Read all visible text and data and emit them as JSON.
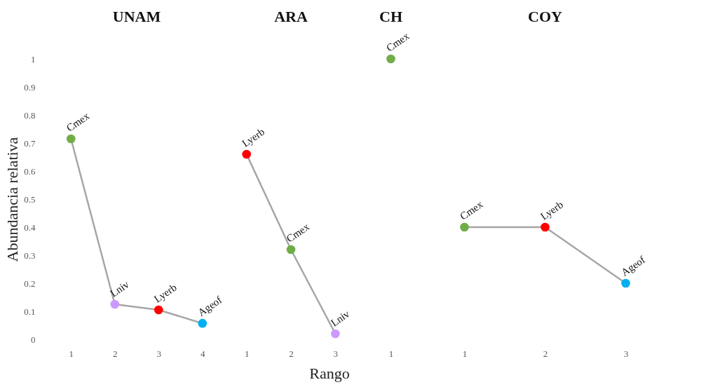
{
  "chart_data": [
    {
      "type": "line",
      "title": "UNAM",
      "ylabel": "Abundancia relativa",
      "xlabel": "Rango",
      "categories": [
        "1",
        "2",
        "3",
        "4"
      ],
      "ylim": [
        0,
        1
      ],
      "yticks": [
        0,
        0.1,
        0.2,
        0.3,
        0.4,
        0.5,
        0.6,
        0.7,
        0.8,
        0.9,
        1
      ],
      "marker": "circle",
      "line_style": "solid",
      "series": [
        {
          "color": "#a6a6a6",
          "colors": [
            "#70ad47",
            "#cc99ff",
            "#ff0000",
            "#00b0f0"
          ],
          "values": [
            0.715,
            0.125,
            0.105,
            0.057
          ]
        }
      ],
      "annotations": [
        {
          "text": "Cmex",
          "x": "1",
          "y": 0.715
        },
        {
          "text": "Lniv",
          "x": "2",
          "y": 0.125
        },
        {
          "text": "Lyerb",
          "x": "3",
          "y": 0.105
        },
        {
          "text": "Ageof",
          "x": "4",
          "y": 0.057
        }
      ]
    },
    {
      "type": "line",
      "title": "ARA",
      "categories": [
        "1",
        "2",
        "3"
      ],
      "ylim": [
        0,
        1
      ],
      "tick_labels": "x",
      "marker": "circle",
      "line_style": "solid",
      "series": [
        {
          "color": "#a6a6a6",
          "colors": [
            "#ff0000",
            "#70ad47",
            "#cc99ff"
          ],
          "values": [
            0.66,
            0.32,
            0.02
          ]
        }
      ],
      "annotations": [
        {
          "text": "Lyerb",
          "x": "1",
          "y": 0.66
        },
        {
          "text": "Cmex",
          "x": "2",
          "y": 0.32
        },
        {
          "text": "Lniv",
          "x": "3",
          "y": 0.02
        }
      ]
    },
    {
      "type": "line",
      "title": "CH",
      "categories": [
        "1"
      ],
      "ylim": [
        0,
        1
      ],
      "tick_labels": "x",
      "marker": "circle",
      "line_style": "solid",
      "series": [
        {
          "color": "#a6a6a6",
          "colors": [
            "#70ad47"
          ],
          "values": [
            1
          ]
        }
      ],
      "annotations": [
        {
          "text": "Cmex",
          "x": "1",
          "y": 1
        }
      ]
    },
    {
      "type": "line",
      "title": "COY",
      "categories": [
        "1",
        "2",
        "3"
      ],
      "ylim": [
        0,
        1
      ],
      "tick_labels": "x",
      "marker": "circle",
      "line_style": "solid",
      "series": [
        {
          "color": "#a6a6a6",
          "colors": [
            "#70ad47",
            "#ff0000",
            "#00b0f0"
          ],
          "values": [
            0.4,
            0.4,
            0.2
          ]
        }
      ],
      "annotations": [
        {
          "text": "Cmex",
          "x": "1",
          "y": 0.4
        },
        {
          "text": "Lyerb",
          "x": "2",
          "y": 0.4
        },
        {
          "text": "Ageof",
          "x": "3",
          "y": 0.2
        }
      ]
    }
  ]
}
